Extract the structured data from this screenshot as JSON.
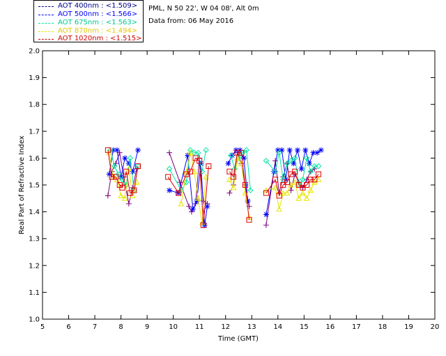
{
  "header": {
    "site": "PML, N 50 22', W 04 08', Alt 0m",
    "date": "Data from: 06 May 2016"
  },
  "legend": [
    {
      "label": "AOT  400nm : <1.509>",
      "color": "#00008b"
    },
    {
      "label": "AOT  500nm : <1.566>",
      "color": "#0000ff"
    },
    {
      "label": "AOT  675nm : <1.563>",
      "color": "#00e5a0"
    },
    {
      "label": "AOT  870nm : <1.494>",
      "color": "#e6e600"
    },
    {
      "label": "AOT 1020nm : <1.515>",
      "color": "#cc0000"
    }
  ],
  "chart_data": {
    "type": "scatter",
    "xlabel": "Time (GMT)",
    "ylabel": "Real Part of Refractive Index",
    "xlim": [
      5,
      20
    ],
    "ylim": [
      1.0,
      2.0
    ],
    "xticks": [
      "5",
      "6",
      "7",
      "8",
      "9",
      "10",
      "11",
      "12",
      "13",
      "14",
      "15",
      "16",
      "17",
      "18",
      "19",
      "20"
    ],
    "yticks": [
      "1.0",
      "1.1",
      "1.2",
      "1.3",
      "1.4",
      "1.5",
      "1.6",
      "1.7",
      "1.8",
      "1.9",
      "2.0"
    ],
    "series": [
      {
        "name": "AOT  400nm : <1.509>",
        "color": "#7a007a",
        "marker": "plus",
        "x": [
          7.5,
          7.65,
          7.8,
          7.95,
          8.1,
          8.3,
          8.45,
          8.6,
          9.85,
          10.25,
          10.6,
          10.7,
          10.85,
          11.0,
          11.15,
          11.3,
          12.15,
          12.3,
          12.45,
          12.6,
          12.75,
          12.9,
          13.55,
          13.9,
          14.05,
          14.2,
          14.35,
          14.5,
          14.65,
          14.8,
          14.95,
          15.1,
          15.25,
          15.4
        ],
        "y": [
          1.46,
          1.55,
          1.58,
          1.62,
          1.53,
          1.43,
          1.49,
          1.56,
          1.62,
          1.51,
          1.42,
          1.4,
          1.43,
          1.6,
          1.44,
          1.43,
          1.47,
          1.5,
          1.62,
          1.58,
          1.5,
          1.42,
          1.35,
          1.59,
          1.47,
          1.53,
          1.58,
          1.48,
          1.54,
          1.51,
          1.49,
          1.52,
          1.55,
          1.56
        ]
      },
      {
        "name": "AOT  500nm : <1.566>",
        "color": "#0000ff",
        "marker": "asterisk",
        "x": [
          7.55,
          7.7,
          7.85,
          8.0,
          8.15,
          8.3,
          8.45,
          8.65,
          9.85,
          10.2,
          10.55,
          10.75,
          10.9,
          11.05,
          11.2,
          11.3,
          12.1,
          12.25,
          12.4,
          12.55,
          12.7,
          12.85,
          13.55,
          13.85,
          14.0,
          14.15,
          14.3,
          14.45,
          14.6,
          14.75,
          14.9,
          15.05,
          15.2,
          15.35,
          15.5,
          15.65
        ],
        "y": [
          1.54,
          1.63,
          1.63,
          1.53,
          1.6,
          1.58,
          1.55,
          1.63,
          1.48,
          1.47,
          1.61,
          1.41,
          1.44,
          1.58,
          1.35,
          1.42,
          1.58,
          1.61,
          1.63,
          1.63,
          1.6,
          1.44,
          1.39,
          1.55,
          1.63,
          1.63,
          1.52,
          1.63,
          1.58,
          1.63,
          1.56,
          1.63,
          1.58,
          1.62,
          1.62,
          1.63
        ]
      },
      {
        "name": "AOT  675nm : <1.563>",
        "color": "#00e5a0",
        "marker": "diamond",
        "x": [
          7.6,
          7.75,
          7.9,
          8.05,
          8.2,
          8.35,
          8.5,
          8.65,
          9.85,
          10.3,
          10.5,
          10.65,
          10.8,
          10.95,
          11.1,
          11.25,
          12.2,
          12.35,
          12.5,
          12.65,
          12.8,
          12.95,
          13.55,
          13.9,
          14.05,
          14.2,
          14.35,
          14.5,
          14.65,
          14.8,
          14.95,
          15.1,
          15.25,
          15.4,
          15.55
        ],
        "y": [
          1.63,
          1.57,
          1.54,
          1.52,
          1.5,
          1.6,
          1.48,
          1.57,
          1.56,
          1.48,
          1.51,
          1.63,
          1.62,
          1.62,
          1.55,
          1.63,
          1.61,
          1.56,
          1.6,
          1.62,
          1.63,
          1.48,
          1.59,
          1.55,
          1.62,
          1.52,
          1.58,
          1.59,
          1.6,
          1.5,
          1.52,
          1.6,
          1.55,
          1.57,
          1.57
        ]
      },
      {
        "name": "AOT  870nm : <1.494>",
        "color": "#e6e600",
        "marker": "triangle",
        "x": [
          7.55,
          7.7,
          7.85,
          8.0,
          8.15,
          8.3,
          8.45,
          8.6,
          10.3,
          10.5,
          10.65,
          10.8,
          10.95,
          11.1,
          11.25,
          12.15,
          12.3,
          12.45,
          12.6,
          12.75,
          12.9,
          13.55,
          13.9,
          14.05,
          14.2,
          14.35,
          14.5,
          14.65,
          14.8,
          14.95,
          15.1,
          15.25,
          15.4,
          15.55
        ],
        "y": [
          1.62,
          1.53,
          1.52,
          1.46,
          1.45,
          1.56,
          1.46,
          1.51,
          1.43,
          1.55,
          1.62,
          1.55,
          1.45,
          1.36,
          1.53,
          1.52,
          1.49,
          1.6,
          1.58,
          1.47,
          1.38,
          1.48,
          1.49,
          1.41,
          1.47,
          1.47,
          1.5,
          1.51,
          1.45,
          1.47,
          1.45,
          1.48,
          1.51,
          1.52
        ]
      },
      {
        "name": "AOT 1020nm : <1.515>",
        "color": "#e00000",
        "marker": "square",
        "x": [
          7.5,
          7.65,
          7.8,
          7.95,
          8.05,
          8.2,
          8.35,
          8.5,
          8.65,
          9.8,
          10.2,
          10.5,
          10.65,
          10.85,
          11.0,
          11.15,
          11.35,
          12.15,
          12.3,
          12.45,
          12.6,
          12.75,
          12.9,
          13.55,
          13.9,
          14.05,
          14.2,
          14.35,
          14.5,
          14.65,
          14.8,
          14.95,
          15.1,
          15.25,
          15.4,
          15.55
        ],
        "y": [
          1.63,
          1.53,
          1.53,
          1.5,
          1.49,
          1.55,
          1.47,
          1.48,
          1.57,
          1.53,
          1.47,
          1.54,
          1.55,
          1.6,
          1.59,
          1.35,
          1.57,
          1.55,
          1.53,
          1.62,
          1.62,
          1.5,
          1.37,
          1.47,
          1.52,
          1.46,
          1.5,
          1.51,
          1.54,
          1.55,
          1.5,
          1.49,
          1.5,
          1.52,
          1.52,
          1.54
        ]
      }
    ]
  }
}
